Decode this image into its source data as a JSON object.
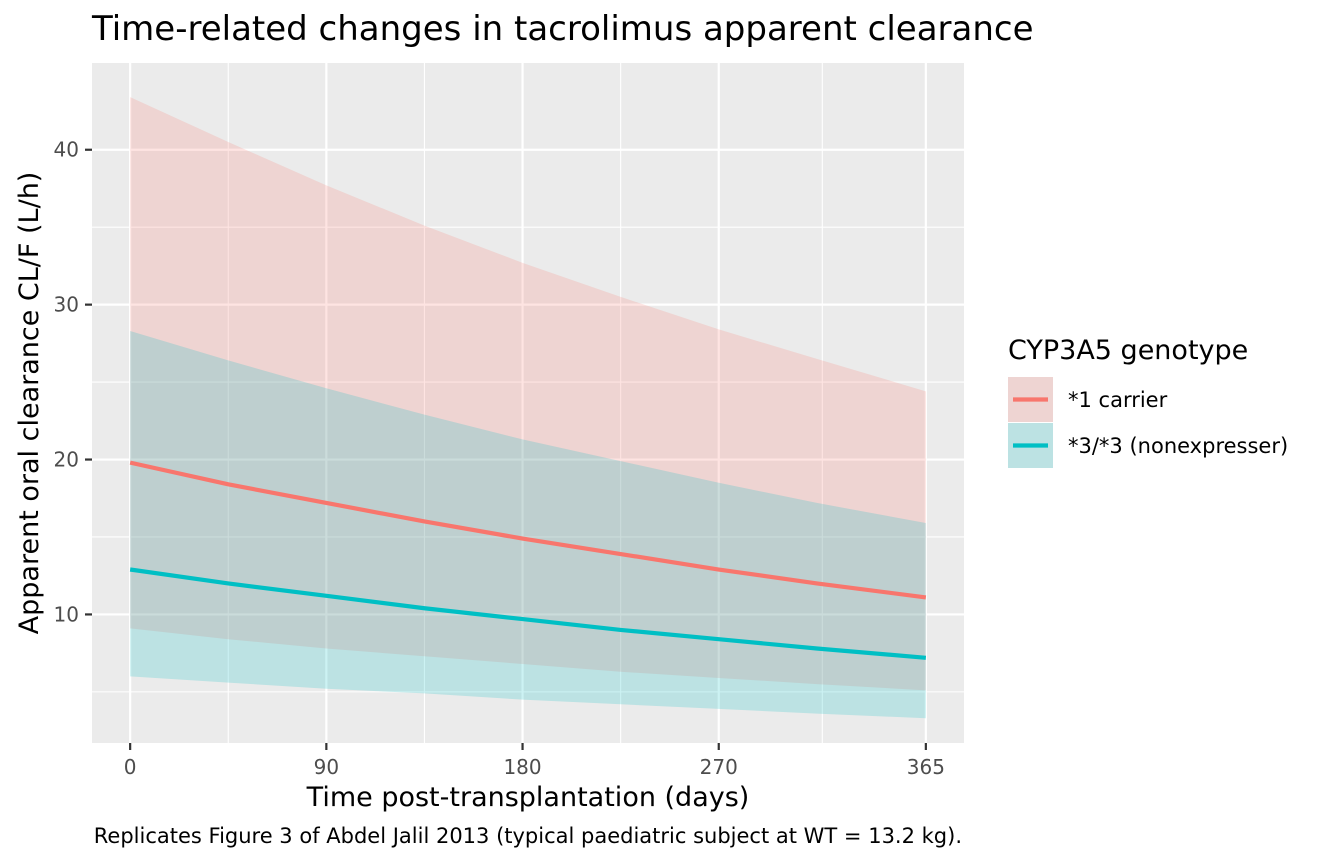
{
  "chart_data": {
    "type": "line",
    "title": "Time-related changes in tacrolimus apparent clearance",
    "xlabel": "Time post-transplantation (days)",
    "ylabel": "Apparent oral clearance CL/F (L/h)",
    "caption": "Replicates Figure 3 of Abdel Jalil 2013 (typical paediatric subject at WT = 13.2 kg).",
    "xlim": [
      -17.5,
      382.5
    ],
    "ylim": [
      1.7,
      45.6
    ],
    "x_ticks": [
      0,
      90,
      180,
      270,
      365
    ],
    "x_tick_labels": [
      "0",
      "90",
      "180",
      "270",
      "365"
    ],
    "y_ticks": [
      10,
      20,
      30,
      40
    ],
    "y_tick_labels": [
      "10",
      "20",
      "30",
      "40"
    ],
    "grid": true,
    "legend": {
      "title": "CYP3A5 genotype",
      "position": "right"
    },
    "series": [
      {
        "name": "*1 carrier",
        "color": "#F8766D",
        "x": [
          0,
          45,
          90,
          135,
          180,
          225,
          270,
          315,
          365
        ],
        "y": [
          19.8,
          18.4,
          17.2,
          16.0,
          14.9,
          13.9,
          12.9,
          12.0,
          11.1
        ],
        "lower": [
          9.1,
          8.4,
          7.8,
          7.3,
          6.8,
          6.3,
          5.9,
          5.5,
          5.1
        ],
        "upper": [
          43.4,
          40.5,
          37.7,
          35.1,
          32.7,
          30.5,
          28.4,
          26.5,
          24.4
        ]
      },
      {
        "name": "*3/*3 (nonexpresser)",
        "color": "#00BFC4",
        "x": [
          0,
          45,
          90,
          135,
          180,
          225,
          270,
          315,
          365
        ],
        "y": [
          12.9,
          12.0,
          11.2,
          10.4,
          9.7,
          9.0,
          8.4,
          7.8,
          7.2
        ],
        "lower": [
          6.0,
          5.6,
          5.2,
          4.9,
          4.5,
          4.2,
          3.9,
          3.6,
          3.3
        ],
        "upper": [
          28.3,
          26.4,
          24.6,
          22.9,
          21.3,
          19.9,
          18.5,
          17.2,
          15.9
        ]
      }
    ]
  }
}
